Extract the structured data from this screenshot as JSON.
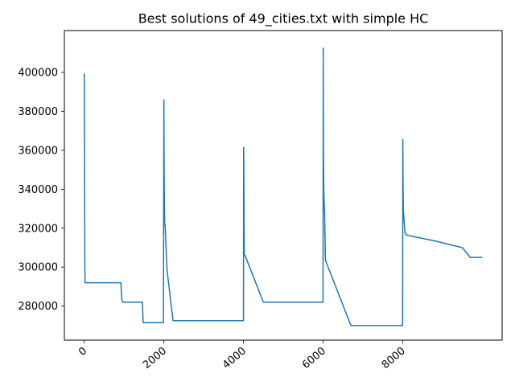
{
  "chart_data": {
    "type": "line",
    "title": "Best solutions of 49_cities.txt with simple HC",
    "xlabel": "",
    "ylabel": "",
    "xlim": [
      -500,
      10500
    ],
    "ylim": [
      262500,
      421500
    ],
    "grid": false,
    "x_ticks": [
      0,
      2000,
      4000,
      6000,
      8000
    ],
    "x_tick_labels": [
      "0",
      "2000",
      "4000",
      "6000",
      "8000"
    ],
    "y_ticks": [
      280000,
      300000,
      320000,
      340000,
      360000,
      380000,
      400000
    ],
    "y_tick_labels": [
      "280000",
      "300000",
      "320000",
      "340000",
      "360000",
      "380000",
      "400000"
    ],
    "color": "#1f77b4",
    "series": [
      {
        "name": "",
        "x": [
          0,
          5,
          10,
          15,
          20,
          25,
          30,
          920,
          940,
          960,
          1460,
          1480,
          1990,
          2000,
          2005,
          2010,
          2015,
          2020,
          2030,
          2080,
          2230,
          4000,
          4005,
          4010,
          4020,
          4030,
          4040,
          4500,
          6000,
          6005,
          6010,
          6020,
          6040,
          6060,
          6700,
          8000,
          8005,
          8010,
          8015,
          8020,
          8060,
          8100,
          8200,
          8800,
          9500,
          9700,
          10000
        ],
        "y": [
          399500,
          370000,
          332000,
          300000,
          292000,
          292000,
          292000,
          292000,
          284000,
          282000,
          282000,
          271500,
          271500,
          386000,
          360000,
          340000,
          332000,
          322000,
          322000,
          298500,
          272500,
          272500,
          361500,
          350000,
          306000,
          306000,
          306000,
          282000,
          282000,
          412500,
          360000,
          338000,
          327000,
          303500,
          270000,
          270000,
          365500,
          345000,
          335000,
          328500,
          317500,
          316500,
          316000,
          313500,
          310000,
          305000,
          305000
        ]
      }
    ]
  }
}
